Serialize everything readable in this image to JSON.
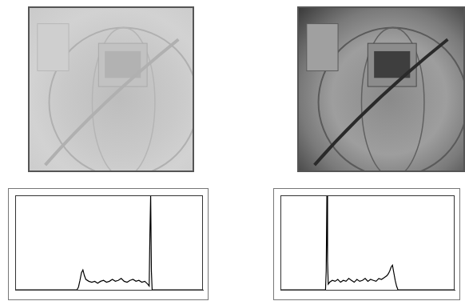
{
  "chart_data": [
    {
      "type": "line",
      "x": [
        0,
        84,
        86,
        88,
        90,
        92,
        94,
        96,
        100,
        104,
        108,
        112,
        116,
        120,
        124,
        128,
        132,
        136,
        140,
        144,
        148,
        152,
        156,
        160,
        164,
        168,
        172,
        176,
        180,
        182,
        183,
        184,
        185,
        186,
        188,
        255
      ],
      "values": [
        0,
        0,
        3,
        10,
        18,
        21,
        15,
        11,
        9,
        8,
        9,
        7,
        9,
        10,
        8,
        9,
        11,
        9,
        10,
        12,
        9,
        8,
        10,
        11,
        9,
        10,
        8,
        9,
        6,
        4,
        60,
        100,
        20,
        0,
        0,
        0
      ],
      "color": "#000000",
      "xlim": [
        0,
        255
      ],
      "ylim": [
        0,
        100
      ],
      "tick_labels": false,
      "grid": false
    },
    {
      "type": "line",
      "x": [
        0,
        66,
        67,
        68,
        69,
        70,
        72,
        76,
        80,
        84,
        88,
        92,
        96,
        100,
        104,
        108,
        112,
        116,
        120,
        124,
        128,
        132,
        136,
        140,
        144,
        148,
        152,
        156,
        158,
        160,
        162,
        164,
        166,
        168,
        170,
        172,
        174,
        255
      ],
      "values": [
        0,
        0,
        20,
        100,
        30,
        6,
        8,
        10,
        9,
        11,
        8,
        10,
        9,
        12,
        10,
        8,
        11,
        9,
        10,
        12,
        9,
        11,
        10,
        9,
        12,
        11,
        13,
        15,
        17,
        20,
        24,
        26,
        18,
        10,
        4,
        0,
        0,
        0
      ],
      "color": "#000000",
      "xlim": [
        0,
        255
      ],
      "ylim": [
        0,
        100
      ],
      "tick_labels": false,
      "grid": false
    }
  ]
}
